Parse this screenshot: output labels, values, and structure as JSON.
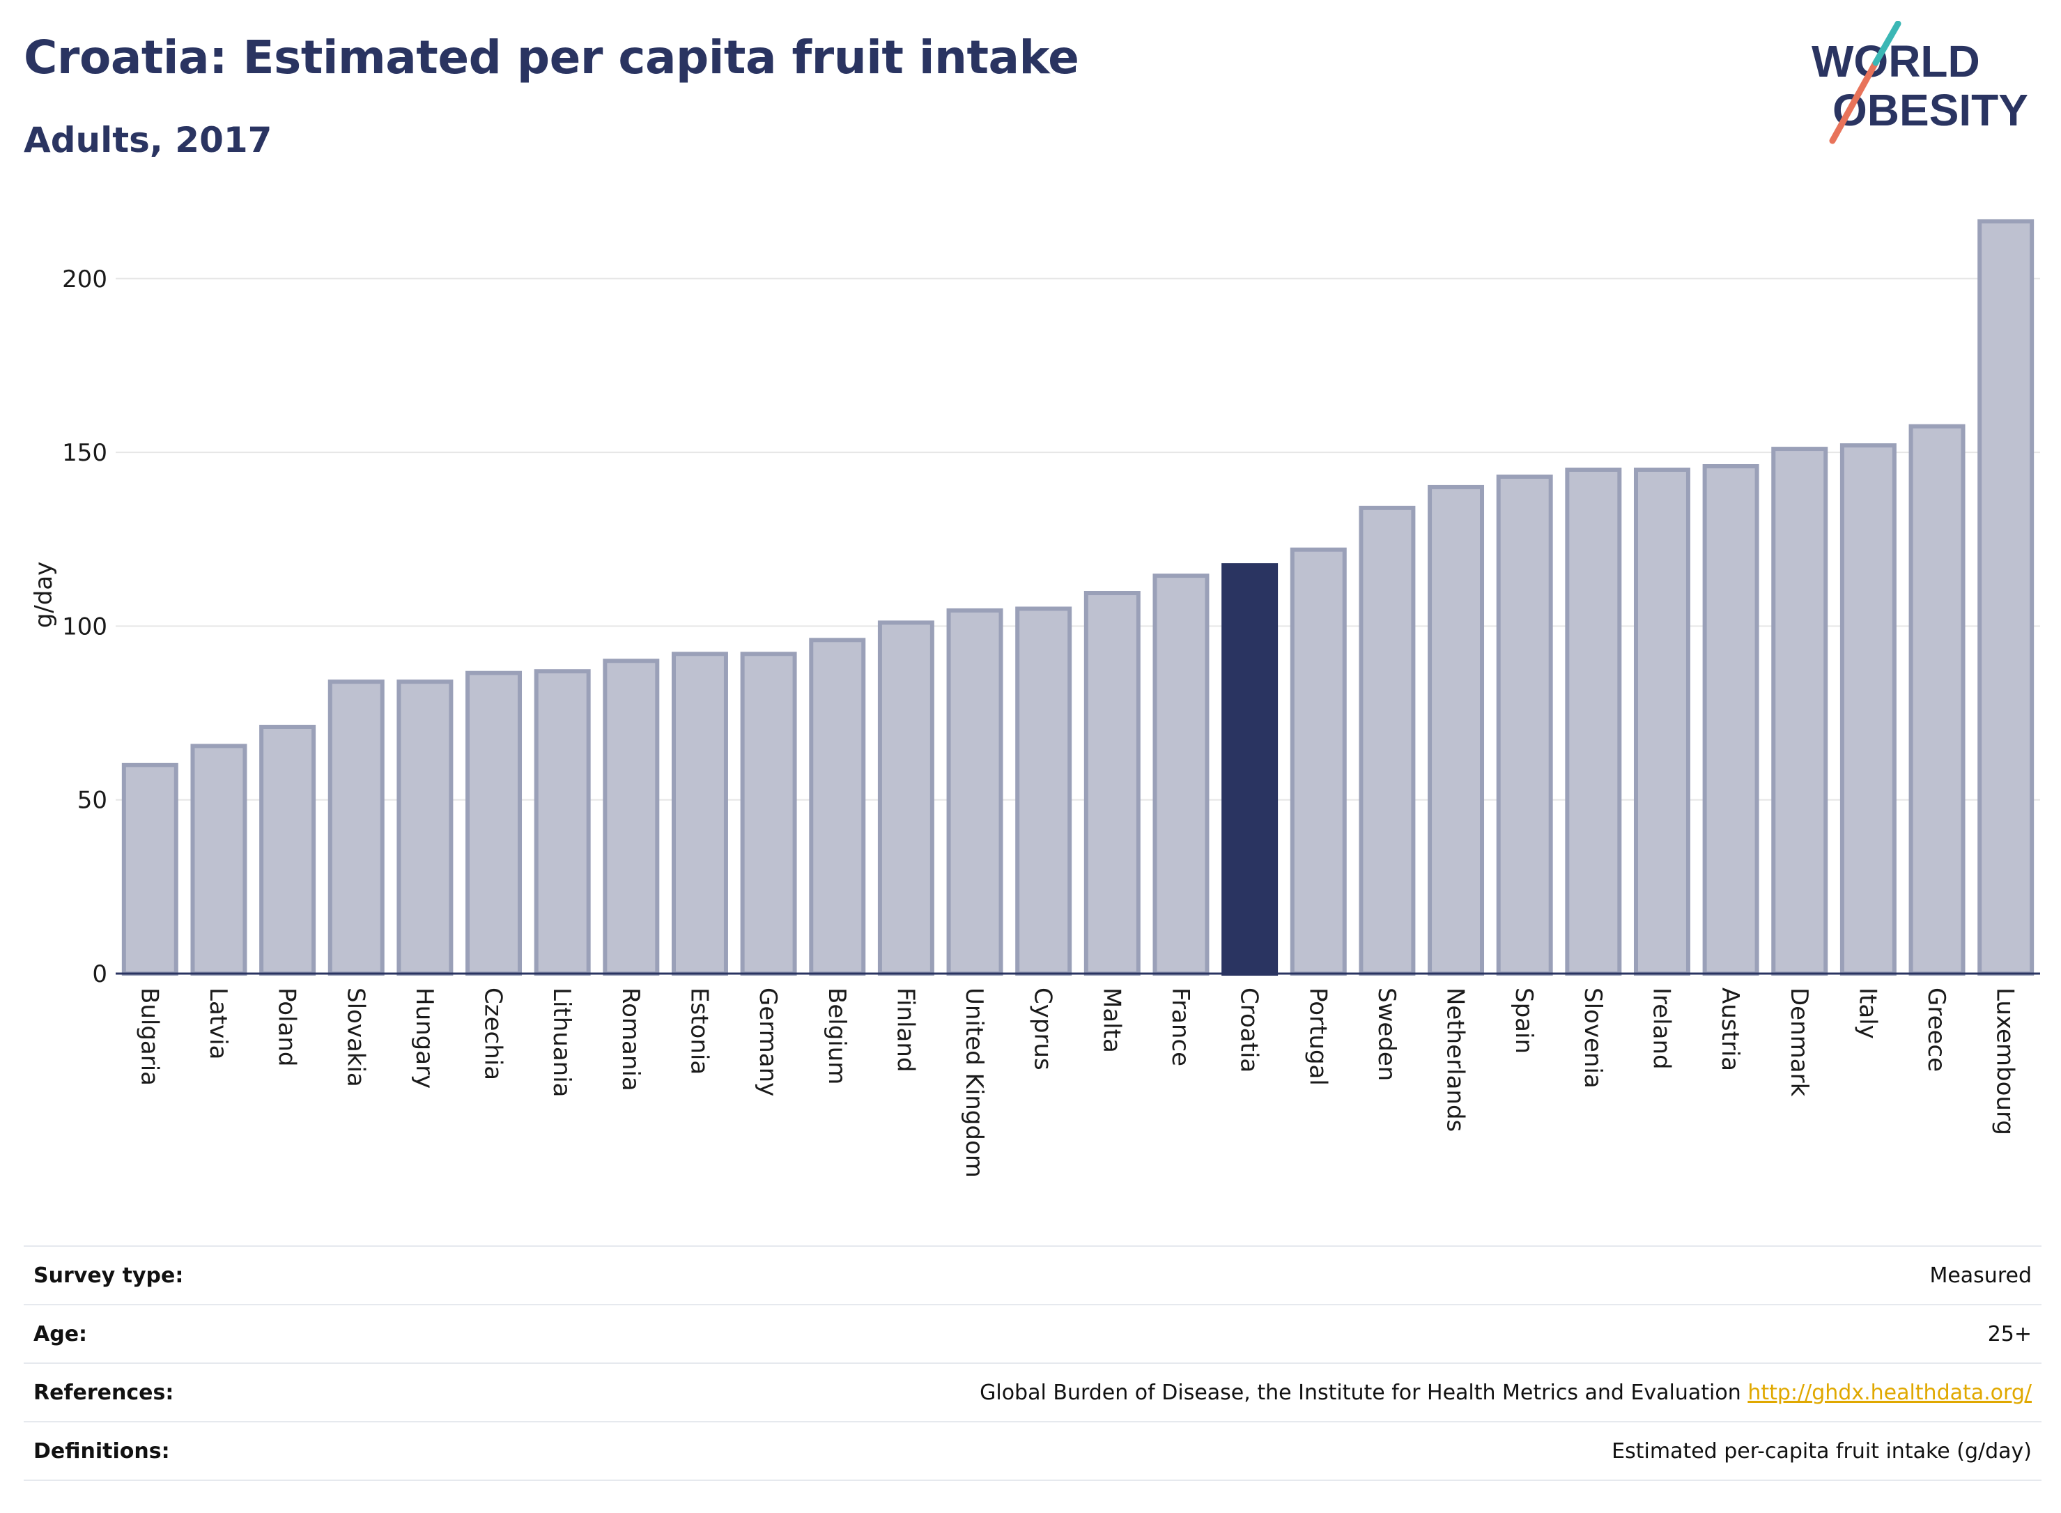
{
  "header": {
    "title": "Croatia: Estimated per capita fruit intake",
    "subtitle": "Adults, 2017"
  },
  "logo": {
    "line1": "WORLD",
    "line2": "OBESITY"
  },
  "chart_data": {
    "type": "bar",
    "ylabel": "g/day",
    "xlabel": "",
    "ylim": [
      0,
      218
    ],
    "yticks": [
      0,
      50,
      100,
      150,
      200
    ],
    "grid": true,
    "highlight": "Croatia",
    "categories": [
      "Bulgaria",
      "Latvia",
      "Poland",
      "Slovakia",
      "Hungary",
      "Czechia",
      "Lithuania",
      "Romania",
      "Estonia",
      "Germany",
      "Belgium",
      "Finland",
      "United Kingdom",
      "Cyprus",
      "Malta",
      "France",
      "Croatia",
      "Portugal",
      "Sweden",
      "Netherlands",
      "Spain",
      "Slovenia",
      "Ireland",
      "Austria",
      "Denmark",
      "Italy",
      "Greece",
      "Luxembourg"
    ],
    "values": [
      60,
      65.5,
      71,
      84,
      84,
      86.5,
      87,
      90,
      92,
      92,
      96,
      101,
      104.5,
      105,
      109.5,
      114.5,
      117.5,
      122,
      134,
      140,
      143,
      145,
      145,
      146,
      151,
      152,
      157.5,
      216.5
    ],
    "colors": {
      "bar": "#bec1d0",
      "bar_edge": "#9aa0b8",
      "highlight": "#2a3461",
      "axis": "#2a3461",
      "grid": "#e6e6e6"
    }
  },
  "info": {
    "survey_type": {
      "label": "Survey type:",
      "value": "Measured"
    },
    "age": {
      "label": "Age:",
      "value": "25+"
    },
    "references": {
      "label": "References:",
      "value": "Global Burden of Disease, the Institute for Health Metrics and Evaluation",
      "link": "http://ghdx.healthdata.org/"
    },
    "definitions": {
      "label": "Definitions:",
      "value": "Estimated per-capita fruit intake (g/day)"
    }
  }
}
